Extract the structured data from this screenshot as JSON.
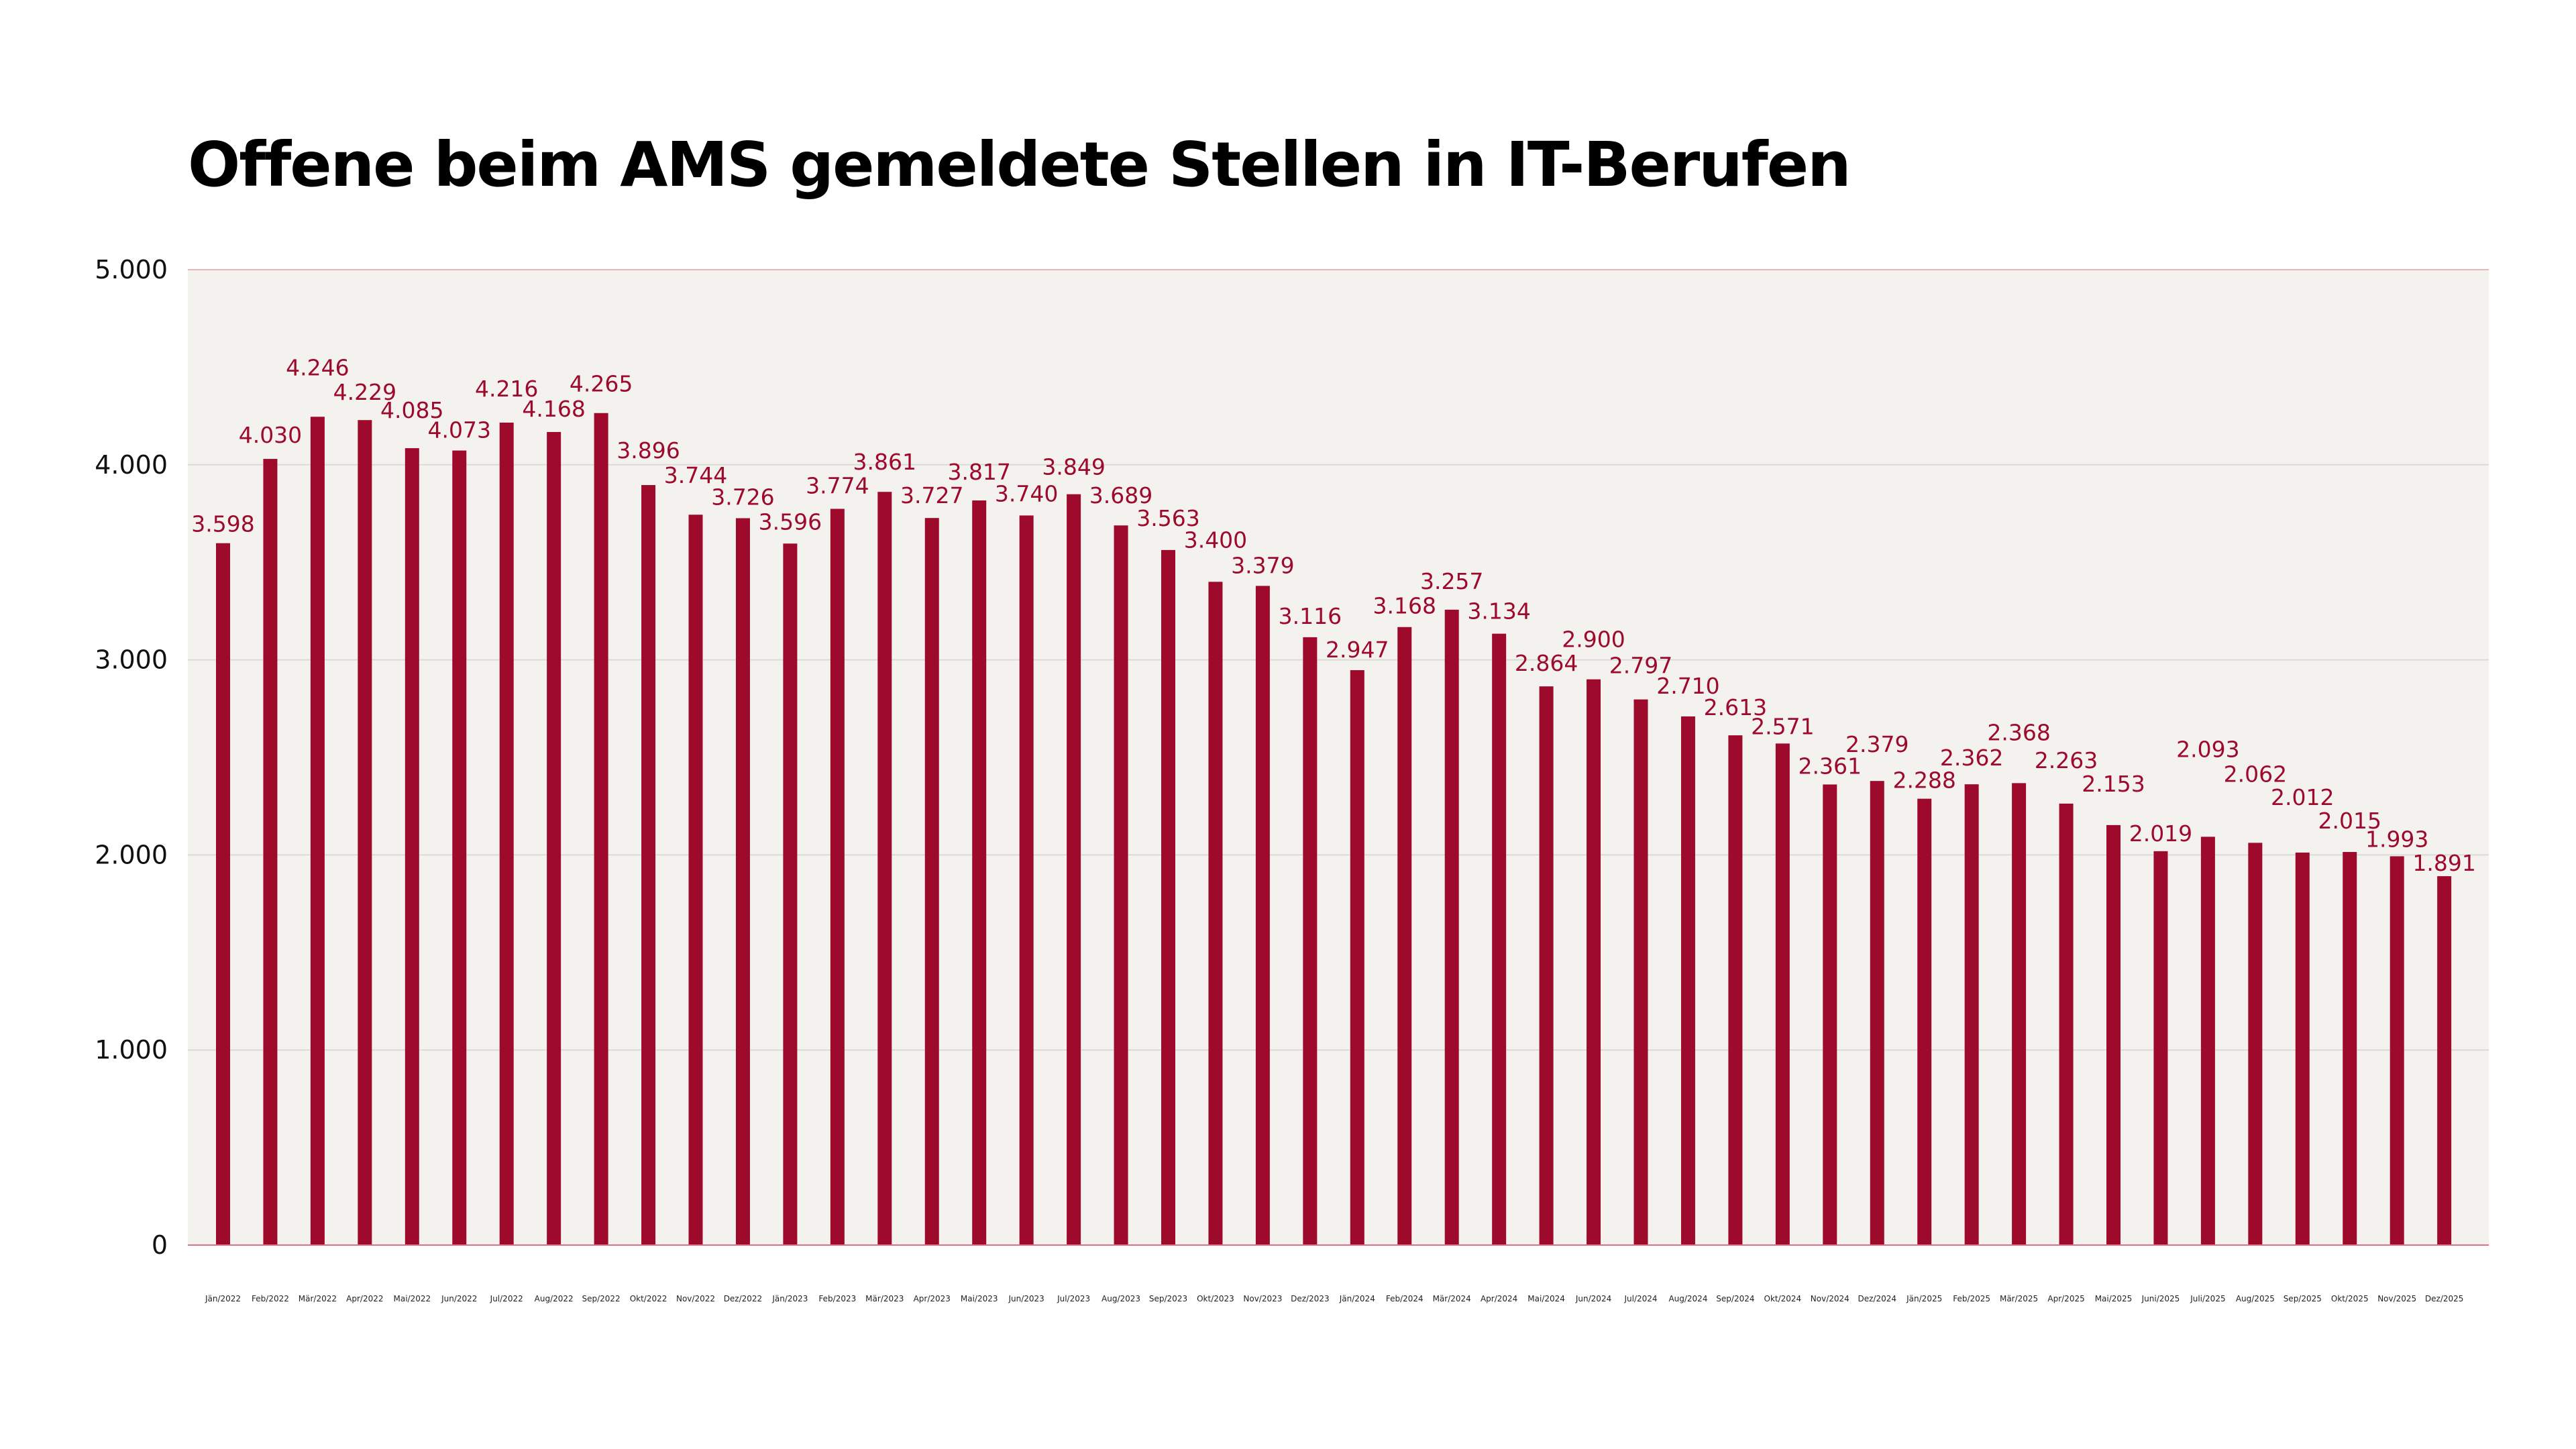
{
  "chart_data": {
    "type": "bar",
    "title": "Offene beim AMS gemeldete Stellen in IT-Berufen",
    "xlabel": "",
    "ylabel": "",
    "ylim": [
      0,
      5000
    ],
    "grid": true,
    "legend": "none",
    "colors": {
      "bar": "#9e0a2b",
      "label": "#9e0a2b",
      "plot_background": "#f4f2ef",
      "grid": "#dcdad6",
      "top_line": "#e8b8b8",
      "baseline": "#e07080"
    },
    "y_ticks": [
      {
        "value": 0,
        "label": "0"
      },
      {
        "value": 1000,
        "label": "1.000"
      },
      {
        "value": 2000,
        "label": "2.000"
      },
      {
        "value": 3000,
        "label": "3.000"
      },
      {
        "value": 4000,
        "label": "4.000"
      },
      {
        "value": 5000,
        "label": "5.000"
      }
    ],
    "categories": [
      "Jän/2022",
      "Feb/2022",
      "Mär/2022",
      "Apr/2022",
      "Mai/2022",
      "Jun/2022",
      "Jul/2022",
      "Aug/2022",
      "Sep/2022",
      "Okt/2022",
      "Nov/2022",
      "Dez/2022",
      "Jän/2023",
      "Feb/2023",
      "Mär/2023",
      "Apr/2023",
      "Mai/2023",
      "Jun/2023",
      "Jul/2023",
      "Aug/2023",
      "Sep/2023",
      "Okt/2023",
      "Nov/2023",
      "Dez/2023",
      "Jän/2024",
      "Feb/2024",
      "Mär/2024",
      "Apr/2024",
      "Mai/2024",
      "Jun/2024",
      "Jul/2024",
      "Aug/2024",
      "Sep/2024",
      "Okt/2024",
      "Nov/2024",
      "Dez/2024",
      "Jän/2025",
      "Feb/2025",
      "Mär/2025",
      "Apr/2025",
      "Mai/2025",
      "Juni/2025",
      "Juli/2025",
      "Aug/2025",
      "Sep/2025",
      "Okt/2025",
      "Nov/2025",
      "Dez/2025"
    ],
    "values": [
      3598,
      4030,
      4246,
      4229,
      4085,
      4073,
      4216,
      4168,
      4265,
      3896,
      3744,
      3726,
      3596,
      3774,
      3861,
      3727,
      3817,
      3740,
      3849,
      3689,
      3563,
      3400,
      3379,
      3116,
      2947,
      3168,
      3257,
      3134,
      2864,
      2900,
      2797,
      2710,
      2613,
      2571,
      2361,
      2379,
      2288,
      2362,
      2368,
      2263,
      2153,
      2019,
      2093,
      2062,
      2012,
      2015,
      1993,
      1891
    ],
    "data_labels": [
      "3.598",
      "4.030",
      "4.246",
      "4.229",
      "4.085",
      "4.073",
      "4.216",
      "4.168",
      "4.265",
      "3.896",
      "3.744",
      "3.726",
      "3.596",
      "3.774",
      "3.861",
      "3.727",
      "3.817",
      "3.740",
      "3.849",
      "3.689",
      "3.563",
      "3.400",
      "3.379",
      "3.116",
      "2.947",
      "3.168",
      "3.257",
      "3.134",
      "2.864",
      "2.900",
      "2.797",
      "2.710",
      "2.613",
      "2.571",
      "2.361",
      "2.379",
      "2.288",
      "2.362",
      "2.368",
      "2.263",
      "2.153",
      "2.019",
      "2.093",
      "2.062",
      "2.012",
      "2.015",
      "1.993",
      "1.891"
    ]
  }
}
